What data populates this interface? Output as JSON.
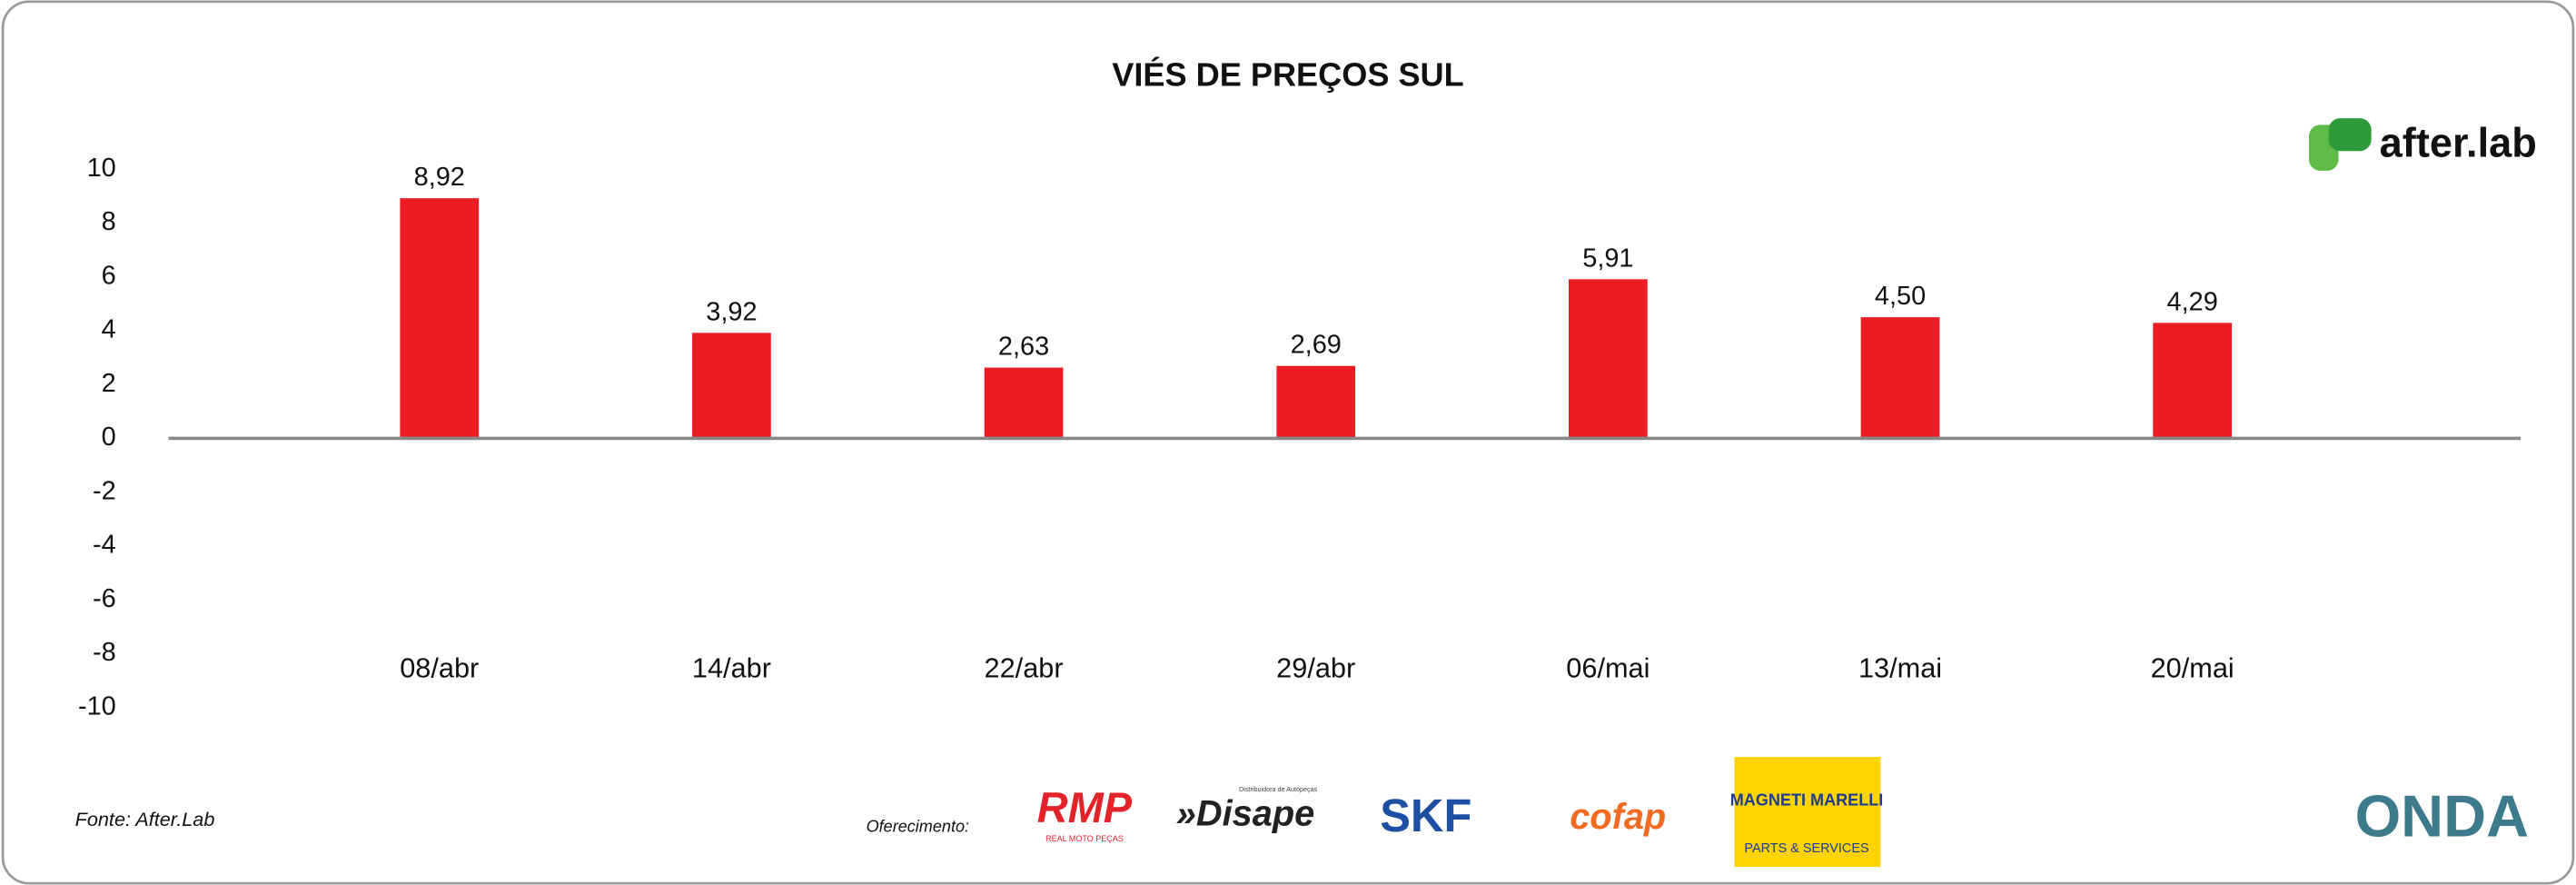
{
  "chart_data": {
    "type": "bar",
    "title": "VIÉS DE PREÇOS SUL",
    "categories": [
      "08/abr",
      "14/abr",
      "22/abr",
      "29/abr",
      "06/mai",
      "13/mai",
      "20/mai"
    ],
    "values": [
      8.92,
      3.92,
      2.63,
      2.69,
      5.91,
      4.5,
      4.29
    ],
    "value_labels": [
      "8,92",
      "3,92",
      "2,63",
      "2,69",
      "5,91",
      "4,50",
      "4,29"
    ],
    "color": "#ed1c24",
    "ylim": [
      -10,
      10
    ],
    "yticks": [
      10,
      8,
      6,
      4,
      2,
      0,
      -2,
      -4,
      -6,
      -8,
      -10
    ],
    "grid": false
  },
  "brand": "after.lab",
  "source": "Fonte: After.Lab",
  "sponsor_label": "Oferecimento:",
  "sponsors": {
    "rmp": "RMP",
    "rmp_sub": "REAL MOTO PEÇAS",
    "disape": "»Disape",
    "disape_sub": "Distribuidora de Autopeças",
    "skf": "SKF",
    "cofap": "cofap",
    "magneti": "MAGNETI MARELLI",
    "magneti_sub": "PARTS & SERVICES",
    "onda": "ONDA"
  }
}
